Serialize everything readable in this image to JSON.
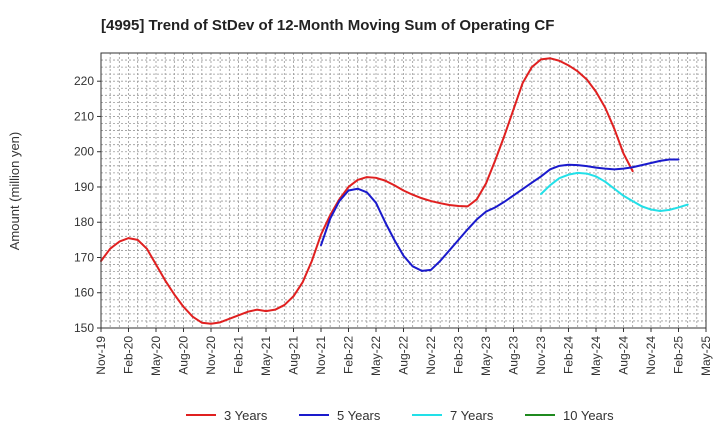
{
  "chart_data": {
    "type": "line",
    "title": "[4995]  Trend of StDev of 12-Month Moving Sum of Operating CF",
    "ylabel": "Amount (million yen)",
    "xlabel": "",
    "ylim": [
      150,
      228
    ],
    "yticks": [
      150,
      160,
      170,
      180,
      190,
      200,
      210,
      220
    ],
    "xticks": [
      "Nov-19",
      "Feb-20",
      "May-20",
      "Aug-20",
      "Nov-20",
      "Feb-21",
      "May-21",
      "Aug-21",
      "Nov-21",
      "Feb-22",
      "May-22",
      "Aug-22",
      "Nov-22",
      "Feb-23",
      "May-23",
      "Aug-23",
      "Nov-23",
      "Feb-24",
      "May-24",
      "Aug-24",
      "Nov-24",
      "Feb-25",
      "May-25"
    ],
    "grid": true,
    "legend_position": "bottom",
    "x_start": "Nov-19",
    "x_step_months": 1,
    "series": [
      {
        "name": "3 Years",
        "color": "#e02020",
        "start_month": 0,
        "values": [
          169.0,
          172.5,
          174.5,
          175.5,
          175.0,
          172.5,
          168.0,
          163.5,
          159.5,
          156.0,
          153.2,
          151.5,
          151.2,
          151.6,
          152.6,
          153.6,
          154.6,
          155.2,
          154.8,
          155.2,
          156.5,
          159.0,
          163.0,
          169.0,
          176.5,
          182.0,
          186.5,
          190.0,
          192.0,
          192.8,
          192.6,
          191.8,
          190.5,
          189.0,
          187.8,
          186.8,
          186.0,
          185.4,
          184.9,
          184.6,
          184.5,
          186.5,
          191.0,
          197.5,
          204.5,
          212.0,
          219.5,
          224.0,
          226.2,
          226.5,
          225.8,
          224.5,
          222.8,
          220.5,
          217.0,
          212.5,
          206.5,
          199.5,
          194.5
        ]
      },
      {
        "name": "5 Years",
        "color": "#1a1acc",
        "start_month": 24,
        "values": [
          173.5,
          181.0,
          186.0,
          189.0,
          189.5,
          188.5,
          185.5,
          180.0,
          175.0,
          170.5,
          167.5,
          166.2,
          166.5,
          169.0,
          172.0,
          175.0,
          178.0,
          180.8,
          183.0,
          184.2,
          185.8,
          187.6,
          189.4,
          191.2,
          193.0,
          195.0,
          196.0,
          196.3,
          196.2,
          195.9,
          195.5,
          195.2,
          195.0,
          195.2,
          195.6,
          196.2,
          196.8,
          197.4,
          197.8,
          197.8
        ]
      },
      {
        "name": "7 Years",
        "color": "#22e0e8",
        "start_month": 48,
        "values": [
          188.0,
          190.5,
          192.5,
          193.5,
          194.0,
          193.8,
          193.0,
          191.5,
          189.5,
          187.5,
          186.0,
          184.5,
          183.6,
          183.2,
          183.5,
          184.2,
          185.0
        ]
      },
      {
        "name": "10 Years",
        "color": "#1f8a1f",
        "start_month": 0,
        "values": []
      }
    ]
  }
}
